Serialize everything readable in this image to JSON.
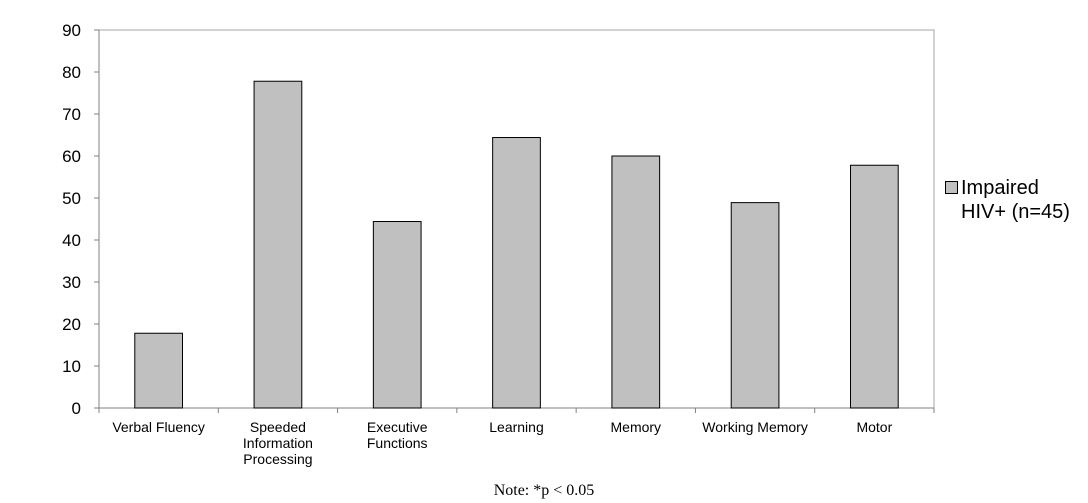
{
  "chart_data": {
    "type": "bar",
    "categories": [
      "Verbal Fluency",
      "Speeded Information Processing",
      "Executive Functions",
      "Learning",
      "Memory",
      "Working Memory",
      "Motor"
    ],
    "category_lines": [
      [
        "Verbal Fluency"
      ],
      [
        "Speeded",
        "Information",
        "Processing"
      ],
      [
        "Executive",
        "Functions"
      ],
      [
        "Learning"
      ],
      [
        "Memory"
      ],
      [
        "Working Memory"
      ],
      [
        "Motor"
      ]
    ],
    "series": [
      {
        "name": "Impaired HIV+ (n=45)",
        "values": [
          17.8,
          77.8,
          44.4,
          64.4,
          60,
          48.9,
          57.8
        ]
      }
    ],
    "ylim": [
      0,
      90
    ],
    "yticks": [
      0,
      10,
      20,
      30,
      40,
      50,
      60,
      70,
      80,
      90
    ],
    "grid": false,
    "legend_position": "right",
    "bar_color": "#c0c0c0",
    "note": "Note: *p < 0.05"
  }
}
